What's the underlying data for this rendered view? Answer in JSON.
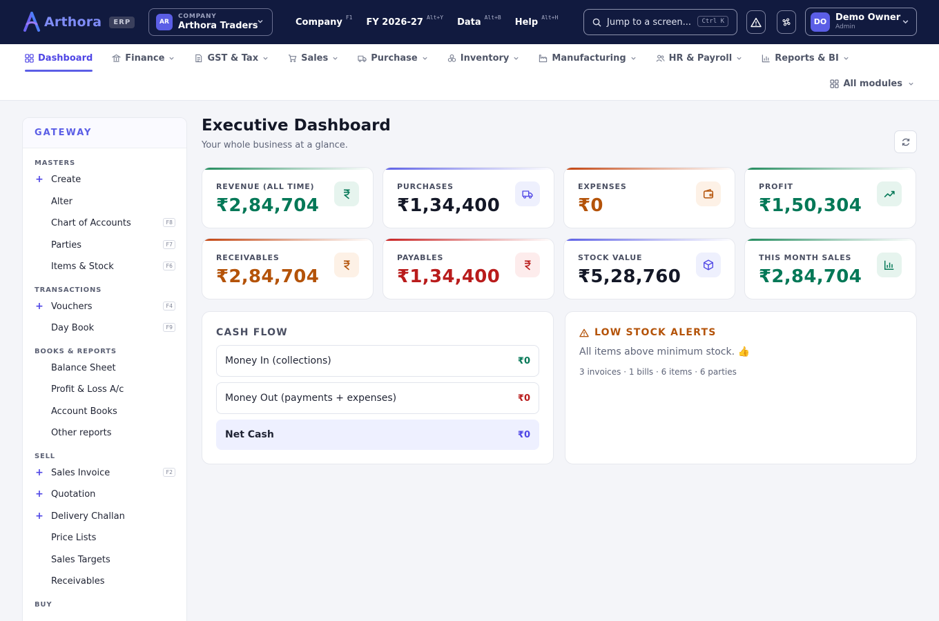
{
  "brand": {
    "name": "Arthora",
    "badge": "ERP"
  },
  "company": {
    "initials": "AR",
    "label": "COMPANY",
    "name": "Arthora Traders"
  },
  "topnav": [
    {
      "label": "Company",
      "key": "F1"
    },
    {
      "label": "FY 2026-27",
      "key": "Alt+Y"
    },
    {
      "label": "Data",
      "key": "Alt+B"
    },
    {
      "label": "Help",
      "key": "Alt+H"
    }
  ],
  "search": {
    "placeholder": "Jump to a screen...",
    "shortcut": "Ctrl K"
  },
  "user": {
    "initials": "DO",
    "name": "Demo Owner",
    "role": "Admin"
  },
  "modules": [
    {
      "label": "Dashboard",
      "icon": "grid-icon"
    },
    {
      "label": "Finance",
      "icon": "bank-icon"
    },
    {
      "label": "GST & Tax",
      "icon": "document-icon"
    },
    {
      "label": "Sales",
      "icon": "cart-icon"
    },
    {
      "label": "Purchase",
      "icon": "truck-icon"
    },
    {
      "label": "Inventory",
      "icon": "boxes-icon"
    },
    {
      "label": "Manufacturing",
      "icon": "factory-icon"
    },
    {
      "label": "HR & Payroll",
      "icon": "users-icon"
    },
    {
      "label": "Reports & BI",
      "icon": "bar-chart-icon"
    }
  ],
  "all_modules": "All modules",
  "sidebar": {
    "title": "GATEWAY",
    "sections": [
      {
        "title": "MASTERS",
        "items": [
          {
            "label": "Create",
            "plus": true,
            "key": ""
          },
          {
            "label": "Alter",
            "plus": false,
            "key": ""
          },
          {
            "label": "Chart of Accounts",
            "plus": false,
            "key": "F8"
          },
          {
            "label": "Parties",
            "plus": false,
            "key": "F7"
          },
          {
            "label": "Items & Stock",
            "plus": false,
            "key": "F6"
          }
        ]
      },
      {
        "title": "TRANSACTIONS",
        "items": [
          {
            "label": "Vouchers",
            "plus": true,
            "key": "F4"
          },
          {
            "label": "Day Book",
            "plus": false,
            "key": "F9"
          }
        ]
      },
      {
        "title": "BOOKS & REPORTS",
        "items": [
          {
            "label": "Balance Sheet",
            "plus": false,
            "key": ""
          },
          {
            "label": "Profit & Loss A/c",
            "plus": false,
            "key": ""
          },
          {
            "label": "Account Books",
            "plus": false,
            "key": ""
          },
          {
            "label": "Other reports",
            "plus": false,
            "key": ""
          }
        ]
      },
      {
        "title": "SELL",
        "items": [
          {
            "label": "Sales Invoice",
            "plus": true,
            "key": "F2"
          },
          {
            "label": "Quotation",
            "plus": true,
            "key": ""
          },
          {
            "label": "Delivery Challan",
            "plus": true,
            "key": ""
          },
          {
            "label": "Price Lists",
            "plus": false,
            "key": ""
          },
          {
            "label": "Sales Targets",
            "plus": false,
            "key": ""
          },
          {
            "label": "Receivables",
            "plus": false,
            "key": ""
          }
        ]
      },
      {
        "title": "BUY",
        "items": []
      }
    ]
  },
  "page": {
    "title": "Executive Dashboard",
    "subtitle": "Your whole business at a glance."
  },
  "kpis": [
    {
      "label": "REVENUE (ALL TIME)",
      "value": "₹2,84,704",
      "color": "#047857",
      "icon": "rupee-icon",
      "icon_bg": "#e6f4ee",
      "bar": "#1f8a5b"
    },
    {
      "label": "PURCHASES",
      "value": "₹1,34,400",
      "color": "#141827",
      "icon": "truck-icon",
      "icon_bg": "#eef0fd",
      "bar": "#5b5ee6"
    },
    {
      "label": "EXPENSES",
      "value": "₹0",
      "color": "#b45309",
      "icon": "wallet-icon",
      "icon_bg": "#fdf1e6",
      "bar": "#c2410c"
    },
    {
      "label": "PROFIT",
      "value": "₹1,50,304",
      "color": "#047857",
      "icon": "trending-up-icon",
      "icon_bg": "#e6f4ee",
      "bar": "#1f8a5b"
    },
    {
      "label": "RECEIVABLES",
      "value": "₹2,84,704",
      "color": "#b45309",
      "icon": "rupee-icon",
      "icon_bg": "#fdf1e6",
      "bar": "#c2410c"
    },
    {
      "label": "PAYABLES",
      "value": "₹1,34,400",
      "color": "#b91c1c",
      "icon": "rupee-icon",
      "icon_bg": "#fdecec",
      "bar": "#c81e1e"
    },
    {
      "label": "STOCK VALUE",
      "value": "₹5,28,760",
      "color": "#141827",
      "icon": "cube-icon",
      "icon_bg": "#eef0fd",
      "bar": "#5b5ee6"
    },
    {
      "label": "THIS MONTH SALES",
      "value": "₹2,84,704",
      "color": "#047857",
      "icon": "bar-chart-icon",
      "icon_bg": "#e6f4ee",
      "bar": "#1f8a5b"
    }
  ],
  "cashflow": {
    "title": "CASH FLOW",
    "rows": [
      {
        "label": "Money In (collections)",
        "value": "₹0",
        "color": "#047857"
      },
      {
        "label": "Money Out (payments + expenses)",
        "value": "₹0",
        "color": "#b91c1c"
      },
      {
        "label": "Net Cash",
        "value": "₹0",
        "color": "#4f46e5"
      }
    ]
  },
  "low_stock": {
    "title": "LOW STOCK ALERTS",
    "message": "All items above minimum stock. 👍",
    "stats": "3 invoices · 1 bills · 6 items · 6 parties"
  }
}
